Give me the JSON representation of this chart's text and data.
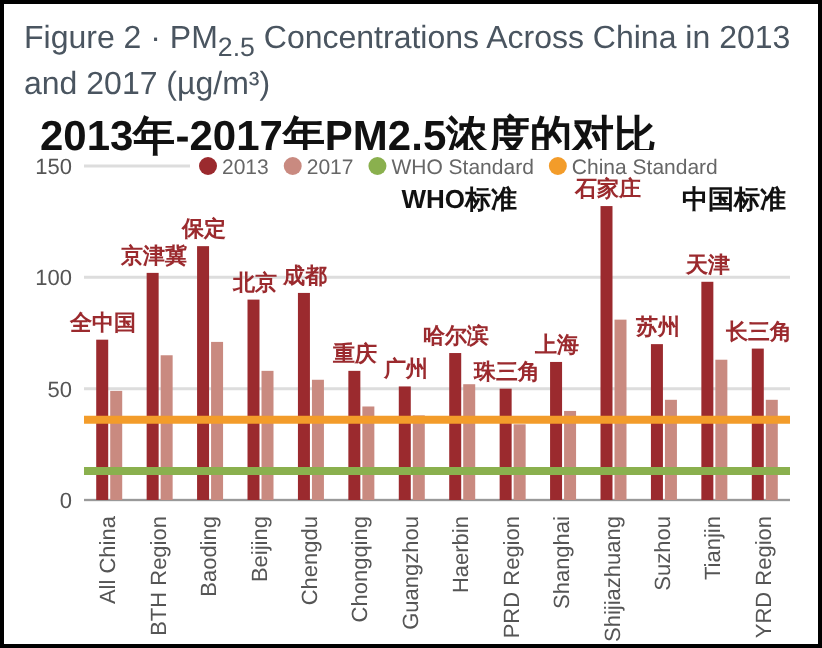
{
  "chart_data": {
    "type": "bar",
    "title": "Figure 2 · PM$_{2.5}$ Concentrations Across China in 2013 and 2017 (µg/m³)",
    "subtitle": "2013年-2017年PM2.5浓度的对比",
    "categories": [
      "All China",
      "BTH Region",
      "Baoding",
      "Beijing",
      "Chengdu",
      "Chongqing",
      "Guangzhou",
      "Haerbin",
      "PRD Region",
      "Shanghai",
      "Shijiazhuang",
      "Suzhou",
      "Tianjin",
      "YRD Region"
    ],
    "series": [
      {
        "name": "2013",
        "color": "#9b2a2e",
        "values": [
          72,
          102,
          114,
          90,
          93,
          58,
          51,
          66,
          50,
          62,
          132,
          70,
          98,
          68
        ]
      },
      {
        "name": "2017",
        "color": "#c98a80",
        "values": [
          49,
          65,
          71,
          58,
          54,
          42,
          38,
          52,
          34,
          40,
          81,
          45,
          63,
          45
        ]
      }
    ],
    "ref_lines": [
      {
        "axis": "y",
        "value": 13,
        "label": "WHO Standard",
        "color": "#8ab04e"
      },
      {
        "axis": "y",
        "value": 36,
        "label": "China Standard",
        "color": "#f39c2a"
      }
    ],
    "annotations": [
      {
        "text": "全中国",
        "x": "All China",
        "y": 72
      },
      {
        "text": "京津冀",
        "x": "BTH Region",
        "y": 102
      },
      {
        "text": "保定",
        "x": "Baoding",
        "y": 114
      },
      {
        "text": "北京",
        "x": "Beijing",
        "y": 90
      },
      {
        "text": "成都",
        "x": "Chengdu",
        "y": 93
      },
      {
        "text": "重庆",
        "x": "Chongqing",
        "y": 58
      },
      {
        "text": "广州",
        "x": "Guangzhou",
        "y": 51
      },
      {
        "text": "哈尔滨",
        "x": "Haerbin",
        "y": 66
      },
      {
        "text": "珠三角",
        "x": "PRD Region",
        "y": 50
      },
      {
        "text": "上海",
        "x": "Shanghai",
        "y": 62
      },
      {
        "text": "石家庄",
        "x": "Shijiazhuang",
        "y": 132
      },
      {
        "text": "苏州",
        "x": "Suzhou",
        "y": 70
      },
      {
        "text": "天津",
        "x": "Tianjin",
        "y": 98
      },
      {
        "text": "长三角",
        "x": "YRD Region",
        "y": 68
      },
      "WHO标准",
      "中国标准"
    ],
    "ylim": [
      0,
      150
    ],
    "yticks": [
      0,
      50,
      100,
      150
    ],
    "grid": "y",
    "legend": "top"
  }
}
